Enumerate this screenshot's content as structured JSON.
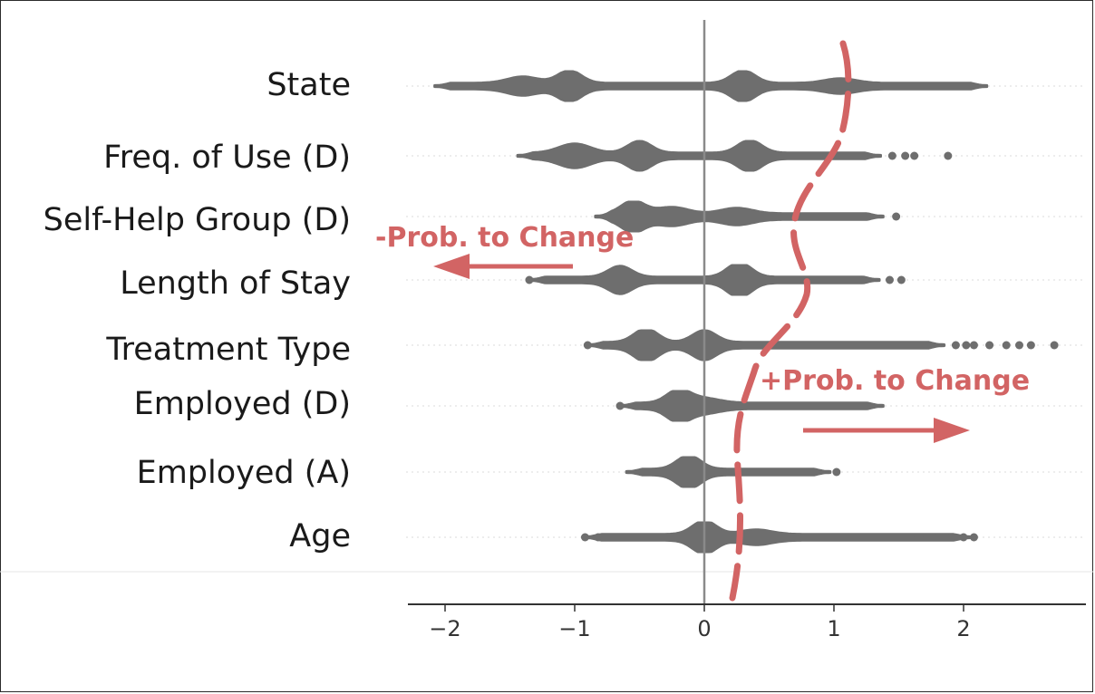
{
  "chart_data": {
    "type": "scatter",
    "subtype": "beeswarm",
    "features": [
      "State",
      "Freq. of Use (D)",
      "Self-Help Group (D)",
      "Length of Stay",
      "Treatment Type",
      "Employed (D)",
      "Employed (A)",
      "Age"
    ],
    "x_ticks": [
      -2,
      -1,
      0,
      1,
      2
    ],
    "x_tick_labels": [
      "−2",
      "−1",
      "0",
      "1",
      "2"
    ],
    "xlim": [
      -2.3,
      2.95
    ],
    "series": [
      {
        "feature": "State",
        "range": [
          -2.08,
          2.18
        ],
        "peaks": [
          [
            -1.4,
            14
          ],
          [
            -1.04,
            28
          ],
          [
            0.3,
            28
          ],
          [
            1.05,
            10
          ]
        ],
        "outliers": []
      },
      {
        "feature": "Freq. of Use (D)",
        "range": [
          -1.44,
          1.36
        ],
        "peaks": [
          [
            -1.0,
            20
          ],
          [
            -0.5,
            26
          ],
          [
            0.35,
            28
          ]
        ],
        "outliers": [
          1.45,
          1.55,
          1.62,
          1.88
        ]
      },
      {
        "feature": "Self-Help Group (D)",
        "range": [
          -0.84,
          1.38
        ],
        "peaks": [
          [
            -0.55,
            28
          ],
          [
            -0.25,
            14
          ],
          [
            0.25,
            12
          ]
        ],
        "outliers": [
          1.48
        ]
      },
      {
        "feature": "Length of Stay",
        "range": [
          -1.35,
          1.35
        ],
        "peaks": [
          [
            -0.65,
            24
          ],
          [
            0.27,
            32
          ]
        ],
        "outliers": [
          -1.35,
          -1.22,
          -1.12,
          1.43,
          1.52
        ]
      },
      {
        "feature": "Treatment Type",
        "range": [
          -0.9,
          1.85
        ],
        "peaks": [
          [
            -0.45,
            30
          ],
          [
            0.0,
            26
          ]
        ],
        "outliers": [
          -0.9,
          1.94,
          2.02,
          2.08,
          2.2,
          2.33,
          2.43,
          2.52,
          2.7
        ]
      },
      {
        "feature": "Employed (D)",
        "range": [
          -0.65,
          1.38
        ],
        "peaks": [
          [
            -0.2,
            28
          ],
          [
            0.0,
            10
          ]
        ],
        "outliers": [
          -0.65
        ]
      },
      {
        "feature": "Employed (A)",
        "range": [
          -0.6,
          0.97
        ],
        "peaks": [
          [
            -0.12,
            30
          ]
        ],
        "outliers": [
          1.02
        ]
      },
      {
        "feature": "Age",
        "range": [
          -0.92,
          2.05
        ],
        "peaks": [
          [
            0.0,
            30
          ],
          [
            0.4,
            10
          ]
        ],
        "outliers": [
          -0.92,
          -0.82,
          1.55,
          1.65,
          1.72,
          1.8,
          1.9,
          2.0,
          2.08
        ]
      }
    ],
    "annotations": {
      "negative": "-Prob. to Change",
      "positive": "+Prob. to Change"
    },
    "colors": {
      "points": "#6e6e6e",
      "annotation": "#d26464",
      "axis": "#333333",
      "zero_line": "#8a8a8a"
    },
    "grid": false
  }
}
